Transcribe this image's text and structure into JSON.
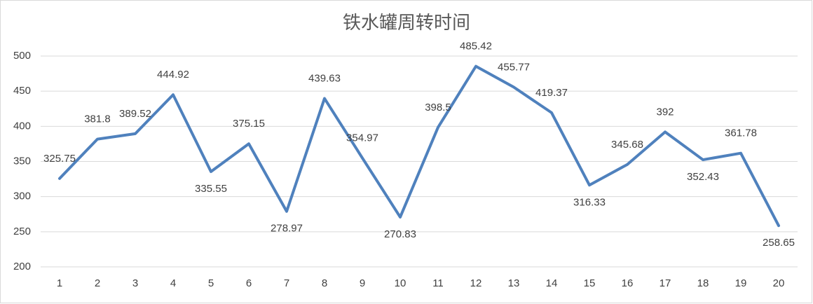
{
  "chart_data": {
    "type": "line",
    "title": "铁水罐周转时间",
    "categories": [
      "1",
      "2",
      "3",
      "4",
      "5",
      "6",
      "7",
      "8",
      "9",
      "10",
      "11",
      "12",
      "13",
      "14",
      "15",
      "16",
      "17",
      "18",
      "19",
      "20"
    ],
    "values": [
      325.75,
      381.8,
      389.52,
      444.92,
      335.55,
      375.15,
      278.97,
      439.63,
      354.97,
      270.83,
      398.5,
      485.42,
      455.77,
      419.37,
      316.33,
      345.68,
      392,
      352.43,
      361.78,
      258.65
    ],
    "color": "#4f81bd",
    "ylim": [
      200,
      500
    ],
    "yticks": [
      200,
      250,
      300,
      350,
      400,
      450,
      500
    ],
    "grid": true
  }
}
